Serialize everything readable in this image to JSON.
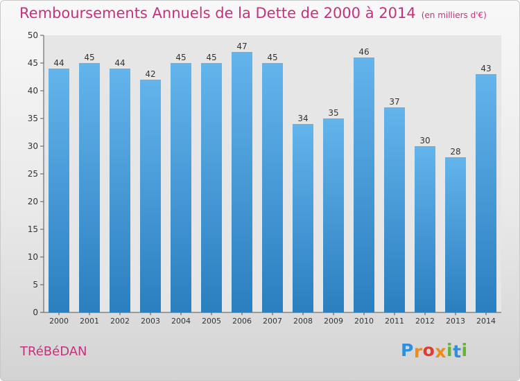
{
  "chart_data": {
    "type": "bar",
    "title": "Remboursements Annuels de la Dette de 2000 à 2014",
    "unit_note": "(en milliers d'€)",
    "xlabel": "",
    "ylabel": "",
    "categories": [
      "2000",
      "2001",
      "2002",
      "2003",
      "2004",
      "2005",
      "2006",
      "2007",
      "2008",
      "2009",
      "2010",
      "2011",
      "2012",
      "2013",
      "2014"
    ],
    "values": [
      44,
      45,
      44,
      42,
      45,
      45,
      47,
      45,
      34,
      35,
      46,
      37,
      30,
      28,
      43
    ],
    "ylim": [
      0,
      50
    ],
    "yticks": [
      0,
      5,
      10,
      15,
      20,
      25,
      30,
      35,
      40,
      45,
      50
    ],
    "grid": false,
    "bar_color_top": "#64b4ec",
    "bar_color_bottom": "#2a7fbf"
  },
  "footer": {
    "commune": "TRéBéDAN",
    "logo_letters": [
      "P",
      "r",
      "o",
      "x",
      "i",
      "t",
      "i"
    ],
    "logo_colors": [
      "#2f8fdd",
      "#f08a1c",
      "#e23a2e",
      "#f08a1c",
      "#66b233",
      "#2f8fdd",
      "#66b233"
    ]
  },
  "colors": {
    "title": "#c4317f",
    "axis": "#555555"
  }
}
